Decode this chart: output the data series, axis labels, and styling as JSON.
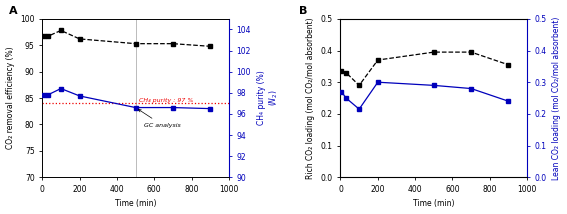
{
  "A": {
    "black_x": [
      10,
      30,
      100,
      200,
      500,
      700,
      900
    ],
    "black_y": [
      96.7,
      96.7,
      97.8,
      96.2,
      95.3,
      95.3,
      94.8
    ],
    "blue_x": [
      10,
      30,
      100,
      200,
      500,
      700,
      900
    ],
    "blue_y": [
      97.8,
      97.8,
      98.4,
      97.7,
      96.6,
      96.6,
      96.5
    ],
    "red_dotted_ch4": 97.0,
    "vline_x": 500,
    "xlim": [
      0,
      1000
    ],
    "ylim_left": [
      70,
      100
    ],
    "ylim_right": [
      90,
      105
    ],
    "xticks": [
      0,
      200,
      400,
      600,
      800,
      1000
    ],
    "yticks_left": [
      70,
      75,
      80,
      85,
      90,
      95,
      100
    ],
    "yticks_right": [
      90,
      92,
      94,
      96,
      98,
      100,
      102,
      104
    ],
    "xlabel": "Time (min)",
    "ylabel_left": "CO₂ removal efficiency (%)",
    "annotation_text": "GC analysis",
    "ch4_label": "CH₄ purity : 97 %",
    "panel_label": "A"
  },
  "B": {
    "black_x": [
      5,
      30,
      100,
      200,
      500,
      700,
      900
    ],
    "black_y": [
      0.335,
      0.33,
      0.29,
      0.37,
      0.395,
      0.395,
      0.355
    ],
    "blue_x": [
      5,
      30,
      100,
      200,
      500,
      700,
      900
    ],
    "blue_y": [
      0.27,
      0.25,
      0.215,
      0.3,
      0.29,
      0.28,
      0.24
    ],
    "xlim": [
      0,
      1000
    ],
    "ylim_left": [
      0.0,
      0.5
    ],
    "ylim_right": [
      0.0,
      0.5
    ],
    "xticks": [
      0,
      200,
      400,
      600,
      800,
      1000
    ],
    "yticks_left": [
      0.0,
      0.1,
      0.2,
      0.3,
      0.4,
      0.5
    ],
    "yticks_right": [
      0.0,
      0.1,
      0.2,
      0.3,
      0.4,
      0.5
    ],
    "xlabel": "Time (min)",
    "ylabel_left": "Rich CO₂ loading (mol CO₂/mol absorbent)",
    "ylabel_right": "Lean CO₂ loading (mol CO₂/mol absorbent)",
    "panel_label": "B"
  },
  "black_color": "#000000",
  "blue_color": "#0000bb",
  "red_color": "#ee0000",
  "gray_color": "#bbbbbb",
  "bg_color": "#ffffff",
  "marker": "s",
  "markersize": 3.5,
  "linewidth": 0.9,
  "fontsize_label": 5.5,
  "fontsize_tick": 5.5,
  "fontsize_panel": 8,
  "fontsize_annot": 4.5
}
